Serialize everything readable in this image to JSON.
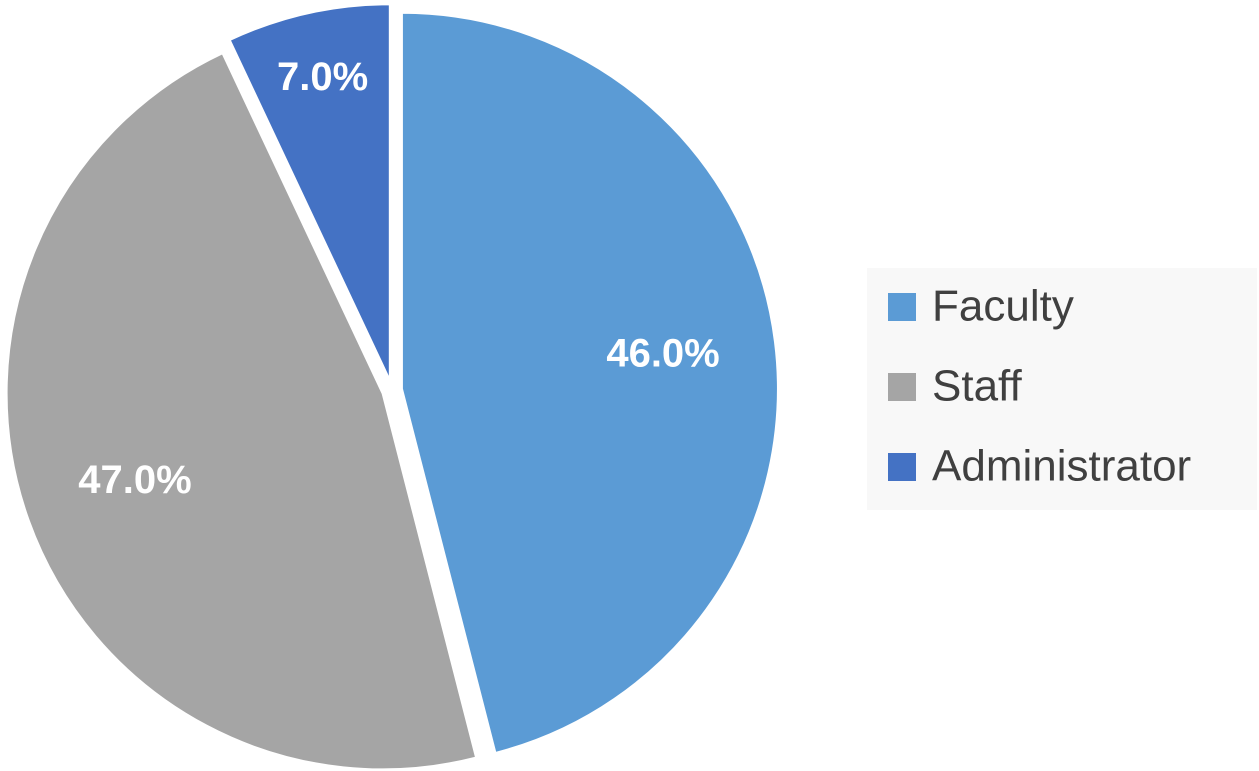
{
  "chart_data": {
    "type": "pie",
    "categories": [
      "Faculty",
      "Staff",
      "Administrator"
    ],
    "values": [
      46,
      47,
      7
    ],
    "value_labels": [
      "46.0%",
      "47.0%",
      "7.0%"
    ],
    "colors": [
      "#5b9bd5",
      "#a5a5a5",
      "#4472c4"
    ],
    "legend": "right"
  }
}
